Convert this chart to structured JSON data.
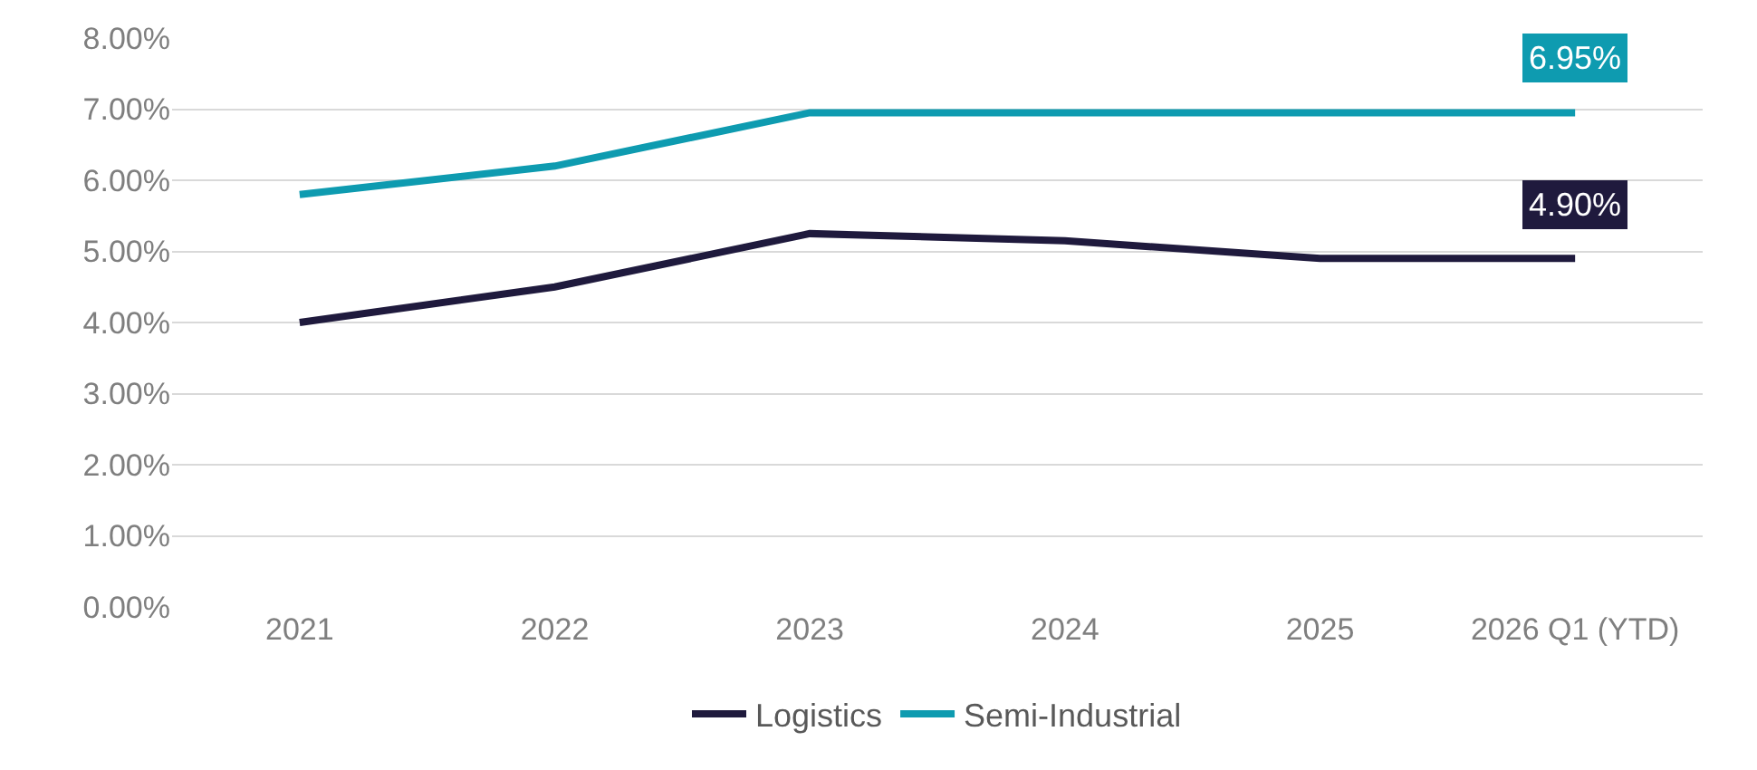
{
  "chart_data": {
    "type": "line",
    "categories": [
      "2021",
      "2022",
      "2023",
      "2024",
      "2025",
      "2026 Q1 (YTD)"
    ],
    "series": [
      {
        "name": "Logistics",
        "color": "#1f1a3d",
        "values": [
          4.0,
          4.5,
          5.25,
          5.15,
          4.9,
          4.9
        ],
        "value_labels": [
          null,
          null,
          null,
          null,
          null,
          "4.90%"
        ]
      },
      {
        "name": "Semi-Industrial",
        "color": "#0e9bb0",
        "values": [
          5.8,
          6.2,
          6.95,
          6.95,
          6.95,
          6.95
        ],
        "value_labels": [
          null,
          null,
          null,
          null,
          null,
          "6.95%"
        ]
      }
    ],
    "ylim": [
      0,
      8
    ],
    "yticks": [
      {
        "value": 0,
        "label": "0.00%"
      },
      {
        "value": 1,
        "label": "1.00%"
      },
      {
        "value": 2,
        "label": "2.00%"
      },
      {
        "value": 3,
        "label": "3.00%"
      },
      {
        "value": 4,
        "label": "4.00%"
      },
      {
        "value": 5,
        "label": "5.00%"
      },
      {
        "value": 6,
        "label": "6.00%"
      },
      {
        "value": 7,
        "label": "7.00%"
      },
      {
        "value": 8,
        "label": "8.00%"
      }
    ],
    "grid": "y",
    "legend": "bottom",
    "marker": "none",
    "line_style": "solid"
  }
}
